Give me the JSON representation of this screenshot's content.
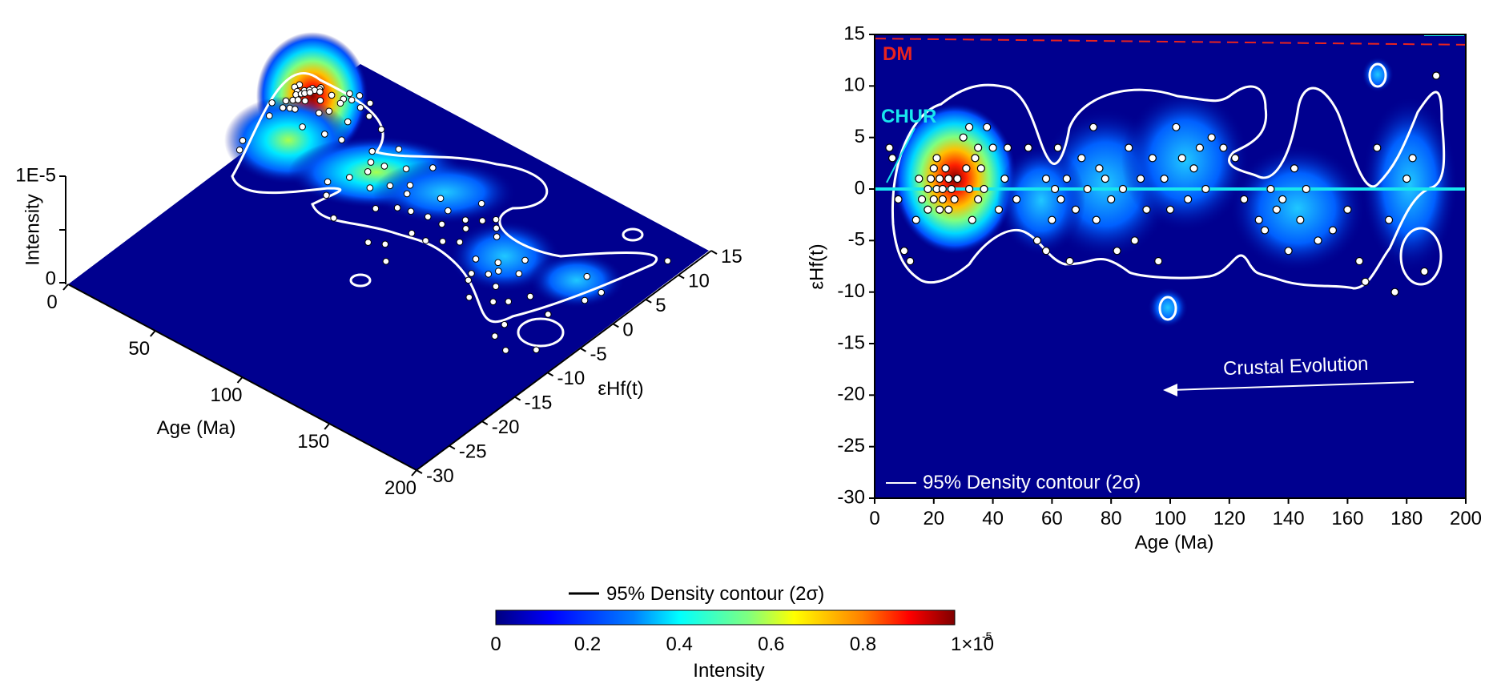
{
  "chart_data": [
    {
      "type": "heatmap",
      "view": "3d-surface",
      "zlabel": "Intensity",
      "xlabel": "Age (Ma)",
      "ylabel": "εHf(t)",
      "z_ticks": [
        "0",
        "1E-5"
      ],
      "x_ticks": [
        "0",
        "50",
        "100",
        "150",
        "200"
      ],
      "y_ticks": [
        "-30",
        "-25",
        "-20",
        "-15",
        "-10",
        "-5",
        "0",
        "5",
        "10",
        "15"
      ],
      "xlim": [
        0,
        200
      ],
      "ylim": [
        -30,
        15
      ],
      "zlim": [
        0,
        1e-05
      ]
    },
    {
      "type": "heatmap",
      "view": "2d-density",
      "xlabel": "Age (Ma)",
      "ylabel": "εHf(t)",
      "xlim": [
        0,
        200
      ],
      "ylim": [
        -30,
        15
      ],
      "x_ticks": [
        "0",
        "20",
        "40",
        "60",
        "80",
        "100",
        "120",
        "140",
        "160",
        "180",
        "200"
      ],
      "y_ticks": [
        "15",
        "10",
        "5",
        "0",
        "-5",
        "-10",
        "-15",
        "-20",
        "-25",
        "-30"
      ],
      "reference_lines": [
        {
          "label": "DM",
          "color": "#e8231f",
          "style": "dashed",
          "y_at_x0": 14.6,
          "y_at_x200": 14.0
        },
        {
          "label": "CHUR",
          "color": "#18e6ee",
          "style": "solid",
          "y": 0
        }
      ],
      "annotation": "Crustal Evolution",
      "legend_label": "95% Density contour (2σ)",
      "points": [
        [
          5,
          4
        ],
        [
          6,
          3
        ],
        [
          8,
          -1
        ],
        [
          10,
          -6
        ],
        [
          12,
          -7
        ],
        [
          14,
          -3
        ],
        [
          15,
          1
        ],
        [
          16,
          -1
        ],
        [
          18,
          -2
        ],
        [
          18,
          0
        ],
        [
          19,
          1
        ],
        [
          20,
          -1
        ],
        [
          20,
          2
        ],
        [
          21,
          0
        ],
        [
          21,
          3
        ],
        [
          22,
          -2
        ],
        [
          22,
          1
        ],
        [
          23,
          -1
        ],
        [
          23,
          0
        ],
        [
          24,
          2
        ],
        [
          25,
          -2
        ],
        [
          25,
          1
        ],
        [
          26,
          0
        ],
        [
          27,
          -1
        ],
        [
          28,
          1
        ],
        [
          30,
          5
        ],
        [
          31,
          2
        ],
        [
          32,
          0
        ],
        [
          32,
          6
        ],
        [
          33,
          -3
        ],
        [
          34,
          3
        ],
        [
          35,
          4
        ],
        [
          35,
          -1
        ],
        [
          36,
          2
        ],
        [
          37,
          0
        ],
        [
          38,
          6
        ],
        [
          40,
          4
        ],
        [
          42,
          -2
        ],
        [
          44,
          1
        ],
        [
          45,
          4
        ],
        [
          48,
          -1
        ],
        [
          52,
          4
        ],
        [
          55,
          -5
        ],
        [
          58,
          -6
        ],
        [
          58,
          1
        ],
        [
          60,
          -3
        ],
        [
          61,
          0
        ],
        [
          62,
          4
        ],
        [
          63,
          -1
        ],
        [
          65,
          1
        ],
        [
          66,
          -7
        ],
        [
          68,
          -2
        ],
        [
          70,
          3
        ],
        [
          72,
          0
        ],
        [
          74,
          6
        ],
        [
          75,
          -3
        ],
        [
          76,
          2
        ],
        [
          78,
          1
        ],
        [
          80,
          -1
        ],
        [
          82,
          -6
        ],
        [
          84,
          0
        ],
        [
          86,
          4
        ],
        [
          88,
          -5
        ],
        [
          90,
          1
        ],
        [
          92,
          -2
        ],
        [
          94,
          3
        ],
        [
          96,
          -7
        ],
        [
          98,
          1
        ],
        [
          100,
          -2
        ],
        [
          102,
          6
        ],
        [
          104,
          3
        ],
        [
          106,
          -1
        ],
        [
          108,
          2
        ],
        [
          110,
          4
        ],
        [
          112,
          0
        ],
        [
          114,
          5
        ],
        [
          118,
          4
        ],
        [
          122,
          3
        ],
        [
          125,
          -1
        ],
        [
          130,
          -3
        ],
        [
          132,
          -4
        ],
        [
          134,
          0
        ],
        [
          136,
          -2
        ],
        [
          138,
          -1
        ],
        [
          140,
          -6
        ],
        [
          142,
          2
        ],
        [
          144,
          -3
        ],
        [
          146,
          0
        ],
        [
          150,
          -5
        ],
        [
          155,
          -4
        ],
        [
          160,
          -2
        ],
        [
          164,
          -7
        ],
        [
          166,
          -9
        ],
        [
          170,
          4
        ],
        [
          174,
          -3
        ],
        [
          176,
          -10
        ],
        [
          180,
          1
        ],
        [
          182,
          3
        ],
        [
          186,
          -8
        ],
        [
          190,
          11
        ]
      ]
    },
    {
      "type": "colorbar",
      "legend_label": "95% Density contour (2σ)",
      "label": "Intensity",
      "ticks": [
        "0",
        "0.2",
        "0.4",
        "0.6",
        "0.8",
        "1×10"
      ],
      "tick_values": [
        0,
        0.2,
        0.4,
        0.6,
        0.8,
        1.0
      ],
      "exponent": "-5",
      "colormap": [
        "#00007f",
        "#0000ff",
        "#007fff",
        "#00ffff",
        "#7fff7f",
        "#ffff00",
        "#ff7f00",
        "#ff0000",
        "#7f0000"
      ]
    }
  ]
}
